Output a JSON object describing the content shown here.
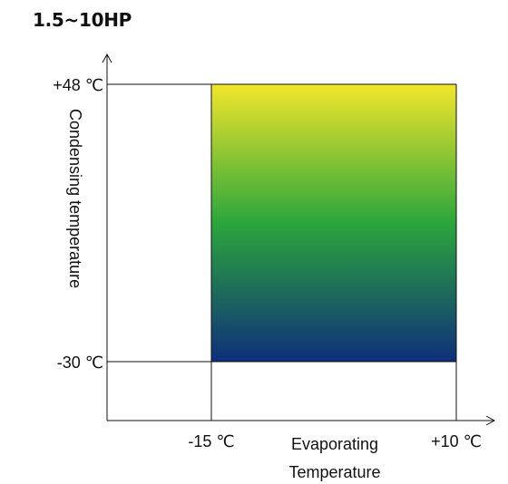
{
  "title": "1.5~10HP",
  "y_axis": {
    "label": "Condensing temperature",
    "tick_top": "+48 ℃",
    "tick_bottom": "-30 ℃"
  },
  "x_axis": {
    "label_line1": "Evaporating",
    "label_line2": "Temperature",
    "tick_left": "-15 ℃",
    "tick_right": "+10 ℃"
  },
  "operating_region": {
    "evaporating_min": -15,
    "evaporating_max": 10,
    "condensing_min": -30,
    "condensing_max": 48
  },
  "colors": {
    "gradient_top": "#f2e62a",
    "gradient_mid": "#2ba63c",
    "gradient_bottom": "#0f2f7a"
  }
}
